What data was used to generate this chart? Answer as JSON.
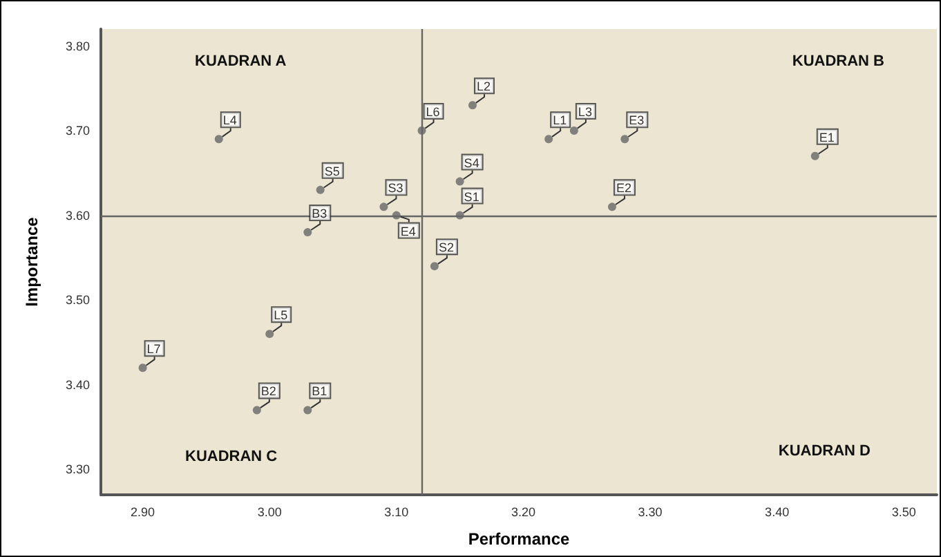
{
  "chart_data": {
    "type": "scatter",
    "xlabel": "Performance",
    "ylabel": "Importance",
    "x": [
      2.96,
      3.04,
      3.09,
      3.1,
      3.03,
      3.12,
      3.16,
      3.22,
      3.24,
      3.28,
      3.43,
      3.15,
      3.15,
      3.27,
      3.13,
      3.0,
      2.9,
      2.99,
      3.03
    ],
    "values": [
      3.69,
      3.63,
      3.61,
      3.6,
      3.58,
      3.7,
      3.73,
      3.69,
      3.7,
      3.69,
      3.67,
      3.64,
      3.6,
      3.61,
      3.54,
      3.46,
      3.42,
      3.37,
      3.37
    ],
    "value_labels": [
      "L4",
      "S5",
      "S3",
      "E4",
      "B3",
      "L6",
      "L2",
      "L1",
      "L3",
      "E3",
      "E1",
      "S4",
      "S1",
      "E2",
      "S2",
      "L5",
      "L7",
      "B2",
      "B1"
    ],
    "color": "#666666",
    "marker": "circle",
    "grid": false,
    "xlim": [
      2.867,
      3.526
    ],
    "xticks": [
      {
        "value": 2.9,
        "label": "2.90"
      },
      {
        "value": 3.0,
        "label": "3.00"
      },
      {
        "value": 3.1,
        "label": "3.10"
      },
      {
        "value": 3.2,
        "label": "3.20"
      },
      {
        "value": 3.3,
        "label": "3.30"
      },
      {
        "value": 3.4,
        "label": "3.40"
      },
      {
        "value": 3.5,
        "label": "3.50"
      }
    ],
    "ylim": [
      3.27,
      3.82
    ],
    "yticks": [
      {
        "value": 3.3,
        "label": "3.30"
      },
      {
        "value": 3.4,
        "label": "3.40"
      },
      {
        "value": 3.5,
        "label": "3.50"
      },
      {
        "value": 3.6,
        "label": "3.60"
      },
      {
        "value": 3.7,
        "label": "3.70"
      },
      {
        "value": 3.8,
        "label": "3.80"
      }
    ],
    "ref_lines": [
      {
        "axis": "x",
        "value": 3.12,
        "color": "#666666"
      },
      {
        "axis": "y",
        "value": 3.6,
        "color": "#666666"
      }
    ],
    "annotations": [
      "KUADRAN A",
      "KUADRAN B",
      "KUADRAN C",
      "KUADRAN D"
    ]
  }
}
